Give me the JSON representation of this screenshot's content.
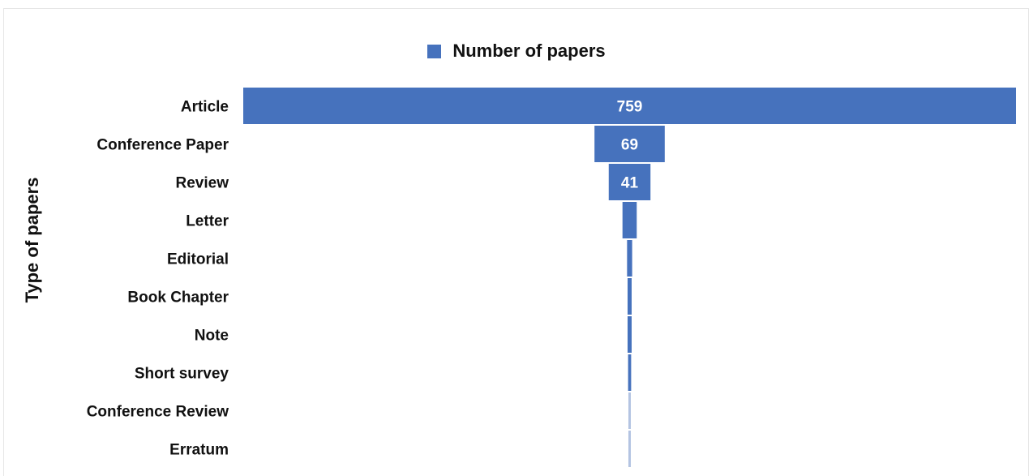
{
  "chart_data": {
    "type": "bar",
    "title": "",
    "ylabel": "Type of papers",
    "xlabel": "",
    "legend": {
      "position": "top-center",
      "entries": [
        "Number of papers"
      ]
    },
    "categories": [
      "Article",
      "Conference Paper",
      "Review",
      "Letter",
      "Editorial",
      "Book Chapter",
      "Note",
      "Short survey",
      "Conference Review",
      "Erratum"
    ],
    "series": [
      {
        "name": "Number of papers",
        "values": [
          759,
          69,
          41,
          14,
          5,
          4,
          4,
          3,
          1,
          1
        ],
        "data_labels": [
          "759",
          "69",
          "41",
          "",
          "",
          "",
          "",
          "",
          "",
          ""
        ]
      }
    ],
    "style": "funnel",
    "grid": false,
    "colors": {
      "bar": "#4672bd",
      "bar_faint": "#b4c4e2"
    }
  }
}
